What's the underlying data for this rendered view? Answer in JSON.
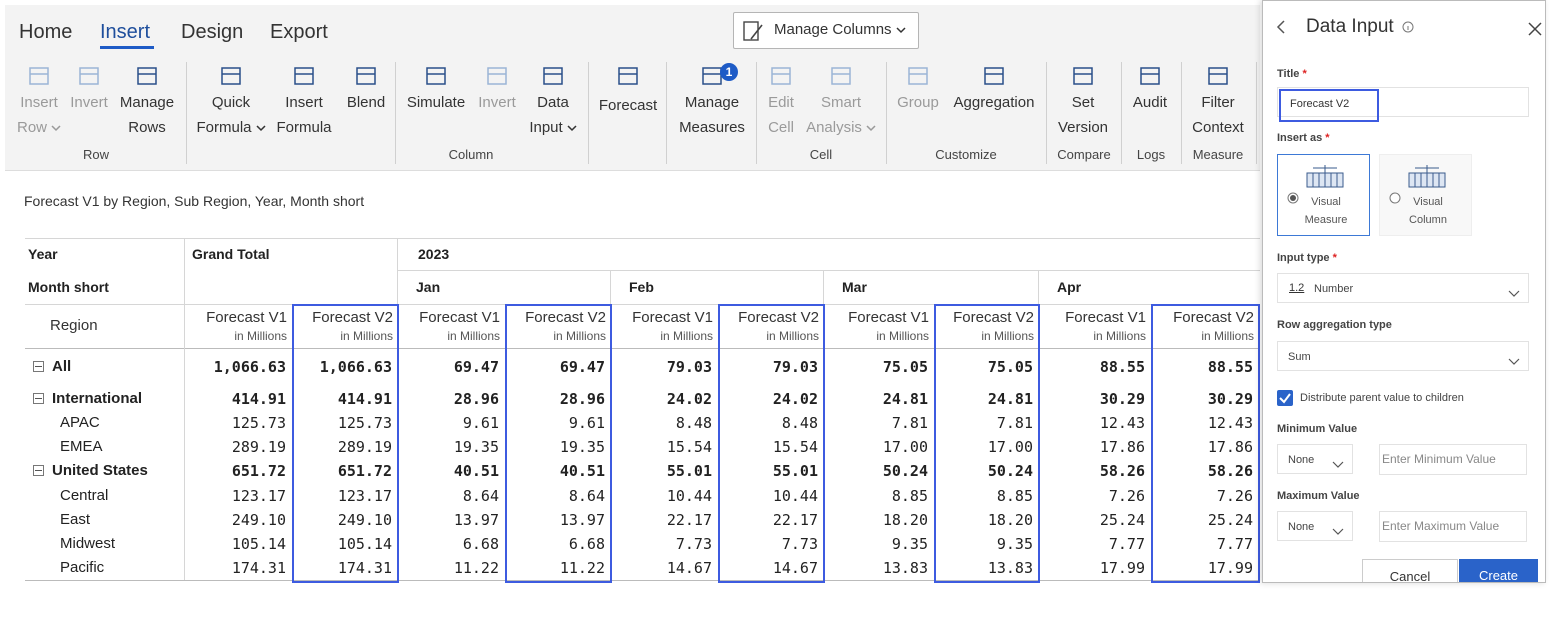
{
  "tabs": [
    "Home",
    "Insert",
    "Design",
    "Export"
  ],
  "active_tab": 1,
  "manage_columns": "Manage Columns",
  "ribbon": {
    "groups": [
      {
        "label": "Row",
        "buttons": [
          {
            "lines": [
              "Insert",
              "Row"
            ],
            "disabled": true,
            "dropdown": true
          },
          {
            "lines": [
              "Invert"
            ],
            "disabled": true
          },
          {
            "lines": [
              "Manage",
              "Rows"
            ]
          }
        ]
      },
      {
        "label": "Column",
        "buttons": [
          {
            "lines": [
              "Quick",
              "Formula"
            ],
            "dropdown": true
          },
          {
            "lines": [
              "Insert",
              "Formula"
            ]
          },
          {
            "lines": [
              "Blend"
            ]
          },
          {
            "lines": [
              "Simulate"
            ]
          },
          {
            "lines": [
              "Invert"
            ],
            "disabled": true
          },
          {
            "lines": [
              "Data",
              "Input"
            ],
            "dropdown": true
          },
          {
            "lines": [
              "Forecast"
            ]
          },
          {
            "lines": [
              "Manage",
              "Measures"
            ],
            "badge": "1"
          }
        ]
      },
      {
        "label": "Cell",
        "buttons": [
          {
            "lines": [
              "Edit",
              "Cell"
            ],
            "disabled": true
          },
          {
            "lines": [
              "Smart",
              "Analysis"
            ],
            "disabled": true,
            "dropdown": true
          }
        ]
      },
      {
        "label": "Customize",
        "buttons": [
          {
            "lines": [
              "Group"
            ],
            "disabled": true
          },
          {
            "lines": [
              "Aggregation"
            ]
          }
        ]
      },
      {
        "label": "Compare",
        "buttons": [
          {
            "lines": [
              "Set",
              "Version"
            ]
          }
        ]
      },
      {
        "label": "Logs",
        "buttons": [
          {
            "lines": [
              "Audit"
            ]
          }
        ]
      },
      {
        "label": "Measure",
        "buttons": [
          {
            "lines": [
              "Filter",
              "Context"
            ]
          }
        ]
      }
    ]
  },
  "report": {
    "title": "Forecast V1 by Region, Sub Region, Year, Month short",
    "table": {
      "year_label": "Year",
      "month_label": "Month short",
      "region_label": "Region",
      "grand_total": "Grand Total",
      "year": "2023",
      "months": [
        "Jan",
        "Feb",
        "Mar",
        "Apr"
      ],
      "measures": [
        {
          "name": "Forecast V1",
          "unit": "in Millions"
        },
        {
          "name": "Forecast V2",
          "unit": "in Millions"
        }
      ],
      "rows": [
        {
          "name": "All",
          "level": 0,
          "bold": true,
          "values": [
            "1,066.63",
            "1,066.63",
            "69.47",
            "69.47",
            "79.03",
            "79.03",
            "75.05",
            "75.05",
            "88.55",
            "88.55"
          ]
        },
        {
          "name": "International",
          "level": 0,
          "bold": true,
          "values": [
            "414.91",
            "414.91",
            "28.96",
            "28.96",
            "24.02",
            "24.02",
            "24.81",
            "24.81",
            "30.29",
            "30.29"
          ]
        },
        {
          "name": "APAC",
          "level": 1,
          "values": [
            "125.73",
            "125.73",
            "9.61",
            "9.61",
            "8.48",
            "8.48",
            "7.81",
            "7.81",
            "12.43",
            "12.43"
          ]
        },
        {
          "name": "EMEA",
          "level": 1,
          "values": [
            "289.19",
            "289.19",
            "19.35",
            "19.35",
            "15.54",
            "15.54",
            "17.00",
            "17.00",
            "17.86",
            "17.86"
          ]
        },
        {
          "name": "United States",
          "level": 0,
          "bold": true,
          "values": [
            "651.72",
            "651.72",
            "40.51",
            "40.51",
            "55.01",
            "55.01",
            "50.24",
            "50.24",
            "58.26",
            "58.26"
          ]
        },
        {
          "name": "Central",
          "level": 1,
          "values": [
            "123.17",
            "123.17",
            "8.64",
            "8.64",
            "10.44",
            "10.44",
            "8.85",
            "8.85",
            "7.26",
            "7.26"
          ]
        },
        {
          "name": "East",
          "level": 1,
          "values": [
            "249.10",
            "249.10",
            "13.97",
            "13.97",
            "22.17",
            "22.17",
            "18.20",
            "18.20",
            "25.24",
            "25.24"
          ]
        },
        {
          "name": "Midwest",
          "level": 1,
          "values": [
            "105.14",
            "105.14",
            "6.68",
            "6.68",
            "7.73",
            "7.73",
            "9.35",
            "9.35",
            "7.77",
            "7.77"
          ]
        },
        {
          "name": "Pacific",
          "level": 1,
          "values": [
            "174.31",
            "174.31",
            "11.22",
            "11.22",
            "14.67",
            "14.67",
            "13.83",
            "13.83",
            "17.99",
            "17.99"
          ]
        }
      ]
    }
  },
  "panel": {
    "title": "Data Input",
    "title_field": {
      "label": "Title",
      "required": true,
      "value": "Forecast V2"
    },
    "insert_as": {
      "label": "Insert as",
      "required": true,
      "options": [
        "Visual Measure",
        "Visual Column"
      ],
      "selected": 0
    },
    "input_type": {
      "label": "Input type",
      "required": true,
      "icon_text": "1.2",
      "value": "Number"
    },
    "row_aggregation": {
      "label": "Row aggregation type",
      "value": "Sum"
    },
    "distribute": {
      "label": "Distribute parent value to children",
      "checked": true
    },
    "minimum": {
      "label": "Minimum Value",
      "select": "None",
      "placeholder": "Enter Minimum Value"
    },
    "maximum": {
      "label": "Maximum Value",
      "select": "None",
      "placeholder": "Enter Maximum Value"
    },
    "cancel": "Cancel",
    "create": "Create"
  }
}
